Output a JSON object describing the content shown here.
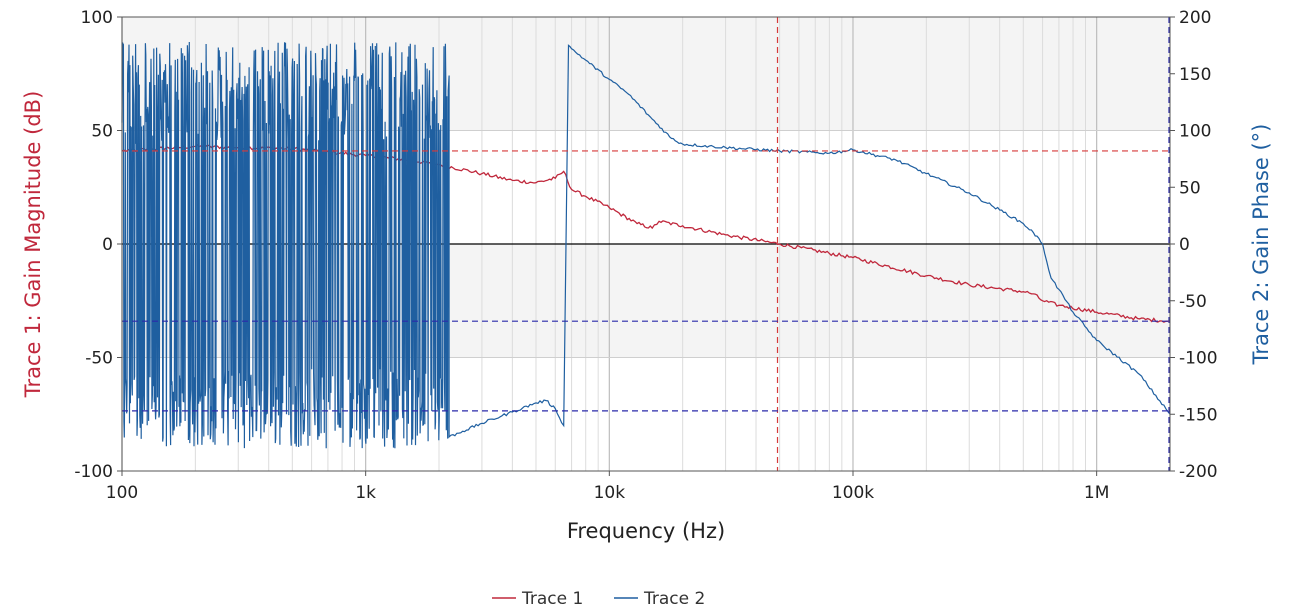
{
  "chart_data": {
    "type": "line",
    "xlabel": "Frequency (Hz)",
    "x_scale": "log",
    "xlim": [
      100,
      2000000
    ],
    "x_ticks": [
      100,
      1000,
      10000,
      100000,
      1000000
    ],
    "x_tick_labels": [
      "100",
      "1k",
      "10k",
      "100k",
      "1M"
    ],
    "y_left": {
      "label": "Trace 1: Gain Magnitude (dB)",
      "lim": [
        -100,
        100
      ],
      "ticks": [
        -100,
        -50,
        0,
        50,
        100
      ],
      "color": "#c0283c"
    },
    "y_right": {
      "label": "Trace 2: Gain Phase (°)",
      "lim": [
        -200,
        200
      ],
      "ticks": [
        -200,
        -150,
        -100,
        -50,
        0,
        50,
        100,
        150,
        200
      ],
      "color": "#1f5fa0"
    },
    "shaded_bands_left_db": [
      [
        50,
        100
      ],
      [
        -50,
        0
      ]
    ],
    "grid": true,
    "legend": {
      "placement": "bottom-center"
    },
    "series": [
      {
        "name": "Trace 1",
        "axis": "left",
        "color": "#c0283c",
        "x": [
          100,
          200,
          500,
          1000,
          1500,
          2000,
          3000,
          4000,
          5000,
          6000,
          6500,
          7000,
          8000,
          10000,
          13000,
          15000,
          16000,
          20000,
          30000,
          50000,
          100000,
          200000,
          300000,
          500000,
          550000,
          600000,
          700000,
          1000000,
          1500000,
          2000000
        ],
        "y": [
          41,
          43,
          42,
          39,
          37,
          35,
          31,
          28,
          27,
          29,
          32,
          24,
          21,
          16,
          9,
          7,
          10,
          8,
          4,
          0,
          -6,
          -14,
          -18,
          -21,
          -22,
          -25,
          -27,
          -30,
          -33,
          -34
        ]
      },
      {
        "name": "Trace 2",
        "axis": "right",
        "color": "#1f5fa0",
        "x": [
          2200,
          2500,
          3000,
          4000,
          5000,
          5500,
          6000,
          6500,
          6800,
          7000,
          8000,
          10000,
          12000,
          15000,
          18000,
          20000,
          30000,
          50000,
          80000,
          100000,
          150000,
          200000,
          300000,
          400000,
          500000,
          550000,
          600000,
          650000,
          700000,
          800000,
          1000000,
          1500000,
          2000000
        ],
        "y": [
          -170,
          -165,
          -158,
          -148,
          -140,
          -138,
          -145,
          -160,
          175,
          172,
          162,
          145,
          132,
          110,
          93,
          88,
          85,
          82,
          80,
          83,
          74,
          62,
          45,
          30,
          18,
          10,
          0,
          -30,
          -40,
          -60,
          -85,
          -115,
          -150
        ],
        "noisy_region_hz": [
          100,
          2200
        ],
        "noisy_range_deg": [
          -180,
          178
        ]
      }
    ],
    "cursors": [
      {
        "orientation": "vertical",
        "axis": "x",
        "value": 49000,
        "color": "#d63a3a"
      },
      {
        "orientation": "vertical",
        "axis": "x",
        "value": 2000000,
        "color": "#2a2aaa"
      },
      {
        "orientation": "horizontal",
        "axis": "left",
        "value": 41,
        "color": "#d63a3a"
      },
      {
        "orientation": "horizontal",
        "axis": "right",
        "value": -68,
        "color": "#2a2aaa"
      },
      {
        "orientation": "horizontal",
        "axis": "right",
        "value": -147,
        "color": "#2a2aaa"
      }
    ]
  }
}
